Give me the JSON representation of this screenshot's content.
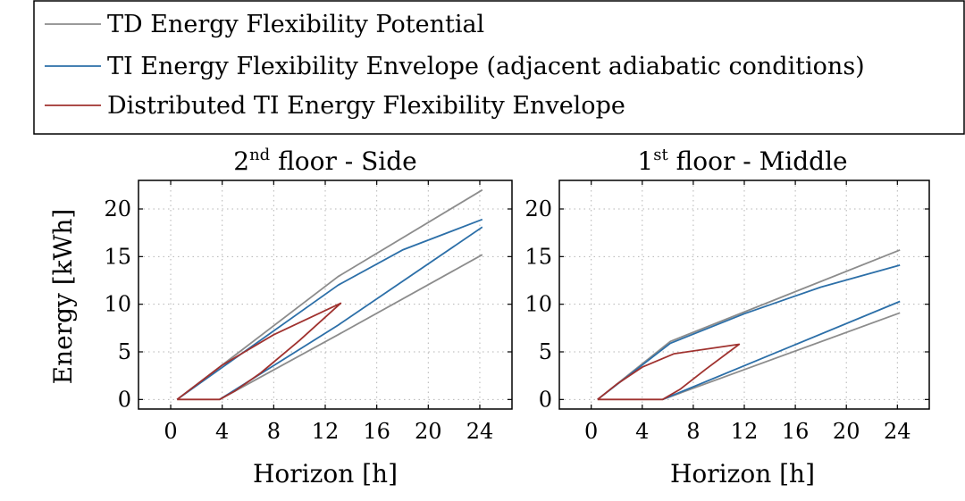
{
  "colors": {
    "td": "#8c8c8c",
    "ti": "#2c6fa8",
    "dist": "#a0322f",
    "grid": "#b4b4b4",
    "frame": "#000000"
  },
  "legend": {
    "placement": "top",
    "entries": [
      {
        "label": "TD Energy Flexibility Potential",
        "color_key": "td"
      },
      {
        "label": "TI Energy Flexibility Envelope (adjacent adiabatic conditions)",
        "color_key": "ti"
      },
      {
        "label": "Distributed TI Energy Flexibility Envelope",
        "color_key": "dist"
      }
    ]
  },
  "chart_data": [
    {
      "type": "line",
      "title_main": "2",
      "title_sup": "nd",
      "title_rest": " floor - Side",
      "xlabel": "Horizon [h]",
      "ylabel": "Energy [kWh]",
      "xlim": [
        -2.5,
        26.5
      ],
      "ylim": [
        -1,
        23
      ],
      "xticks": [
        0,
        4,
        8,
        12,
        16,
        20,
        24
      ],
      "yticks": [
        0,
        5,
        10,
        15,
        20
      ],
      "grid": true,
      "series": [
        {
          "key": "td_upper",
          "color_key": "td",
          "points": [
            [
              0.5,
              0
            ],
            [
              13,
              12.9
            ],
            [
              24.2,
              22
            ]
          ]
        },
        {
          "key": "td_lower",
          "color_key": "td",
          "points": [
            [
              3.8,
              0
            ],
            [
              13,
              6.8
            ],
            [
              24.2,
              15.2
            ]
          ]
        },
        {
          "key": "ti_upper",
          "color_key": "ti",
          "points": [
            [
              0.5,
              0
            ],
            [
              13,
              12
            ],
            [
              18,
              15.7
            ],
            [
              24.2,
              18.9
            ]
          ]
        },
        {
          "key": "ti_lower",
          "color_key": "ti",
          "points": [
            [
              3.8,
              0
            ],
            [
              13,
              7.8
            ],
            [
              24.2,
              18.1
            ]
          ]
        },
        {
          "key": "dist_envelope",
          "color_key": "dist",
          "points": [
            [
              0.5,
              0
            ],
            [
              4,
              3.6
            ],
            [
              8,
              6.8
            ],
            [
              13.2,
              10.1
            ],
            [
              10,
              6.2
            ],
            [
              7,
              2.8
            ],
            [
              5,
              0.9
            ],
            [
              3.8,
              0
            ],
            [
              0.5,
              0
            ]
          ]
        }
      ]
    },
    {
      "type": "line",
      "title_main": "1",
      "title_sup": "st",
      "title_rest": " floor - Middle",
      "xlabel": "Horizon [h]",
      "ylabel": "",
      "xlim": [
        -2.5,
        26.5
      ],
      "ylim": [
        -1,
        23
      ],
      "xticks": [
        0,
        4,
        8,
        12,
        16,
        20,
        24
      ],
      "yticks": [
        0,
        5,
        10,
        15,
        20
      ],
      "grid": true,
      "series": [
        {
          "key": "td_upper",
          "color_key": "td",
          "points": [
            [
              0.5,
              0
            ],
            [
              6.2,
              6.1
            ],
            [
              24.2,
              15.7
            ]
          ]
        },
        {
          "key": "td_lower",
          "color_key": "td",
          "points": [
            [
              5.6,
              0
            ],
            [
              24.2,
              9.1
            ]
          ]
        },
        {
          "key": "ti_upper",
          "color_key": "ti",
          "points": [
            [
              0.5,
              0
            ],
            [
              6.2,
              5.9
            ],
            [
              12,
              9
            ],
            [
              18,
              11.8
            ],
            [
              24.2,
              14.1
            ]
          ]
        },
        {
          "key": "ti_lower",
          "color_key": "ti",
          "points": [
            [
              5.6,
              0
            ],
            [
              24.2,
              10.3
            ]
          ]
        },
        {
          "key": "dist_envelope",
          "color_key": "dist",
          "points": [
            [
              0.5,
              0
            ],
            [
              2,
              1.6
            ],
            [
              4,
              3.4
            ],
            [
              6.5,
              4.8
            ],
            [
              11.6,
              5.8
            ],
            [
              9,
              3.2
            ],
            [
              7,
              1.1
            ],
            [
              5.6,
              0
            ],
            [
              0.5,
              0
            ]
          ]
        }
      ]
    }
  ]
}
